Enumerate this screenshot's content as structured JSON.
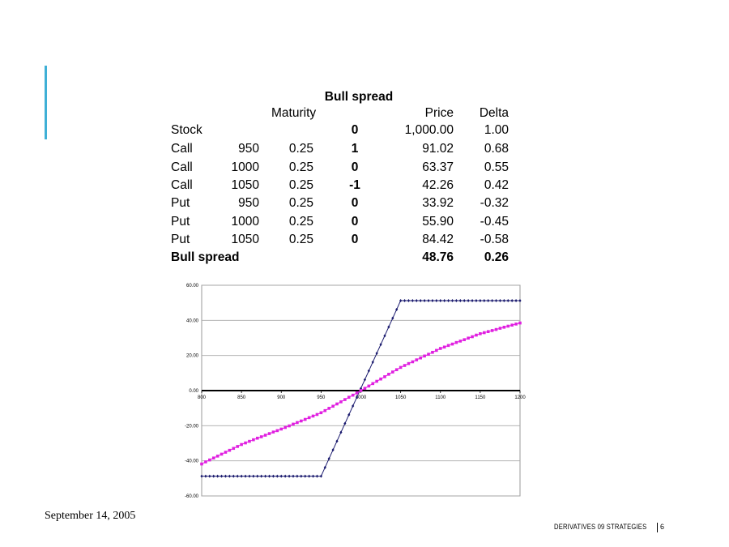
{
  "table": {
    "title": "Bull spread",
    "headers": {
      "maturity": "Maturity",
      "price": "Price",
      "delta": "Delta"
    },
    "rows": [
      {
        "type": "Stock",
        "strike": "",
        "maturity": "",
        "position": "0",
        "price": "1,000.00",
        "delta": "1.00"
      },
      {
        "type": "Call",
        "strike": "950",
        "maturity": "0.25",
        "position": "1",
        "price": "91.02",
        "delta": "0.68"
      },
      {
        "type": "Call",
        "strike": "1000",
        "maturity": "0.25",
        "position": "0",
        "price": "63.37",
        "delta": "0.55"
      },
      {
        "type": "Call",
        "strike": "1050",
        "maturity": "0.25",
        "position": "-1",
        "price": "42.26",
        "delta": "0.42"
      },
      {
        "type": "Put",
        "strike": "950",
        "maturity": "0.25",
        "position": "0",
        "price": "33.92",
        "delta": "-0.32"
      },
      {
        "type": "Put",
        "strike": "1000",
        "maturity": "0.25",
        "position": "0",
        "price": "55.90",
        "delta": "-0.45"
      },
      {
        "type": "Put",
        "strike": "1050",
        "maturity": "0.25",
        "position": "0",
        "price": "84.42",
        "delta": "-0.58"
      }
    ],
    "total": {
      "label": "Bull spread",
      "price": "48.76",
      "delta": "0.26"
    }
  },
  "chart_data": {
    "type": "line",
    "title": "",
    "xlabel": "",
    "ylabel": "",
    "xlim": [
      800,
      1200
    ],
    "ylim": [
      -60,
      60
    ],
    "xticks": [
      "800",
      "850",
      "900",
      "950",
      "1000",
      "1050",
      "1100",
      "1150",
      "1200"
    ],
    "yticks": [
      "60.00",
      "40.00",
      "20.00",
      "0.00",
      "-20.00",
      "-40.00",
      "-60.00"
    ],
    "grid": true,
    "legend": "none",
    "x": [
      800,
      805,
      810,
      815,
      820,
      825,
      830,
      835,
      840,
      845,
      850,
      855,
      860,
      865,
      870,
      875,
      880,
      885,
      890,
      895,
      900,
      905,
      910,
      915,
      920,
      925,
      930,
      935,
      940,
      945,
      950,
      955,
      960,
      965,
      970,
      975,
      980,
      985,
      990,
      995,
      1000,
      1005,
      1010,
      1015,
      1020,
      1025,
      1030,
      1035,
      1040,
      1045,
      1050,
      1055,
      1060,
      1065,
      1070,
      1075,
      1080,
      1085,
      1090,
      1095,
      1100,
      1105,
      1110,
      1115,
      1120,
      1125,
      1130,
      1135,
      1140,
      1145,
      1150,
      1155,
      1160,
      1165,
      1170,
      1175,
      1180,
      1185,
      1190,
      1195,
      1200
    ],
    "series": [
      {
        "color": "#1a1a6e",
        "marker": "diamond",
        "values": [
          -48.76,
          -48.76,
          -48.76,
          -48.76,
          -48.76,
          -48.76,
          -48.76,
          -48.76,
          -48.76,
          -48.76,
          -48.76,
          -48.76,
          -48.76,
          -48.76,
          -48.76,
          -48.76,
          -48.76,
          -48.76,
          -48.76,
          -48.76,
          -48.76,
          -48.76,
          -48.76,
          -48.76,
          -48.76,
          -48.76,
          -48.76,
          -48.76,
          -48.76,
          -48.76,
          -48.76,
          -43.76,
          -38.76,
          -33.76,
          -28.76,
          -23.76,
          -18.76,
          -13.76,
          -8.76,
          -3.76,
          1.24,
          6.24,
          11.24,
          16.24,
          21.24,
          26.24,
          31.24,
          36.24,
          41.24,
          46.24,
          51.24,
          51.24,
          51.24,
          51.24,
          51.24,
          51.24,
          51.24,
          51.24,
          51.24,
          51.24,
          51.24,
          51.24,
          51.24,
          51.24,
          51.24,
          51.24,
          51.24,
          51.24,
          51.24,
          51.24,
          51.24,
          51.24,
          51.24,
          51.24,
          51.24,
          51.24,
          51.24,
          51.24,
          51.24,
          51.24,
          51.24
        ]
      },
      {
        "color": "#e020e0",
        "marker": "square",
        "values": [
          -41.8,
          -40.6,
          -39.5,
          -38.4,
          -37.3,
          -36.2,
          -35.1,
          -34.0,
          -32.9,
          -31.8,
          -30.7,
          -29.8,
          -28.9,
          -28.0,
          -27.1,
          -26.3,
          -25.4,
          -24.5,
          -23.6,
          -22.8,
          -21.9,
          -21.0,
          -20.1,
          -19.1,
          -18.2,
          -17.3,
          -16.4,
          -15.4,
          -14.5,
          -13.6,
          -12.6,
          -11.4,
          -10.1,
          -8.9,
          -7.6,
          -6.4,
          -5.1,
          -3.8,
          -2.6,
          -1.3,
          0.0,
          1.3,
          2.6,
          4.0,
          5.3,
          6.6,
          7.9,
          9.3,
          10.6,
          11.9,
          13.2,
          14.3,
          15.4,
          16.4,
          17.5,
          18.6,
          19.7,
          20.7,
          21.8,
          22.9,
          24.0,
          24.8,
          25.7,
          26.5,
          27.4,
          28.2,
          29.0,
          29.9,
          30.7,
          31.6,
          32.4,
          33.0,
          33.6,
          34.2,
          34.8,
          35.5,
          36.1,
          36.7,
          37.3,
          37.9,
          38.5
        ]
      }
    ]
  },
  "footer": {
    "date": "September 14, 2005",
    "course": "DERIVATIVES 09 STRATEGIES",
    "page": "6"
  }
}
